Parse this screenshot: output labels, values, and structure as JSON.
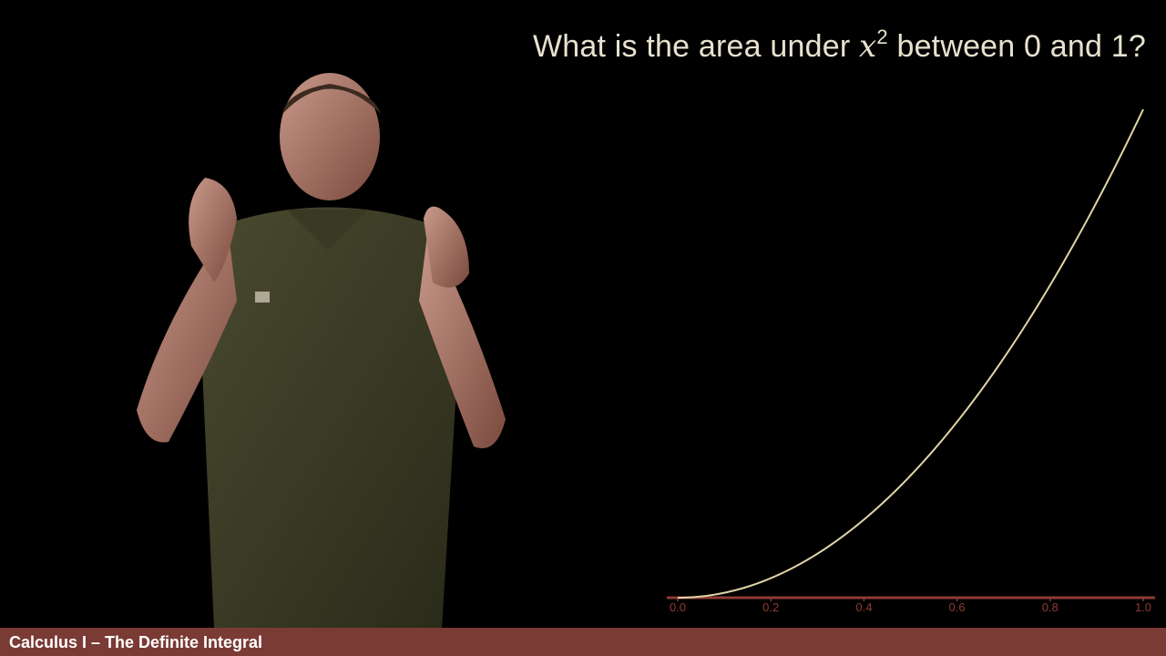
{
  "question": {
    "before": "What is the area under ",
    "variable": "x",
    "exponent": "2",
    "after": " between 0 and 1?"
  },
  "footer": {
    "title": "Calculus I – The Definite Integral"
  },
  "colors": {
    "curve": "#e0d6a8",
    "axis": "#8f3a34",
    "footer_bg": "#7a3b34",
    "background": "#000000"
  },
  "chart_data": {
    "type": "line",
    "function": "x^2",
    "x": [
      0.0,
      0.05,
      0.1,
      0.15,
      0.2,
      0.25,
      0.3,
      0.35,
      0.4,
      0.45,
      0.5,
      0.55,
      0.6,
      0.65,
      0.7,
      0.75,
      0.8,
      0.85,
      0.9,
      0.95,
      1.0
    ],
    "y": [
      0.0,
      0.0025,
      0.01,
      0.0225,
      0.04,
      0.0625,
      0.09,
      0.1225,
      0.16,
      0.2025,
      0.25,
      0.3025,
      0.36,
      0.4225,
      0.49,
      0.5625,
      0.64,
      0.7225,
      0.81,
      0.9025,
      1.0
    ],
    "xticks": [
      "0.0",
      "0.2",
      "0.4",
      "0.6",
      "0.8",
      "1.0"
    ],
    "xtick_values": [
      0.0,
      0.2,
      0.4,
      0.6,
      0.8,
      1.0
    ],
    "xlim": [
      0,
      1
    ],
    "ylim": [
      0,
      1
    ],
    "grid": false
  }
}
